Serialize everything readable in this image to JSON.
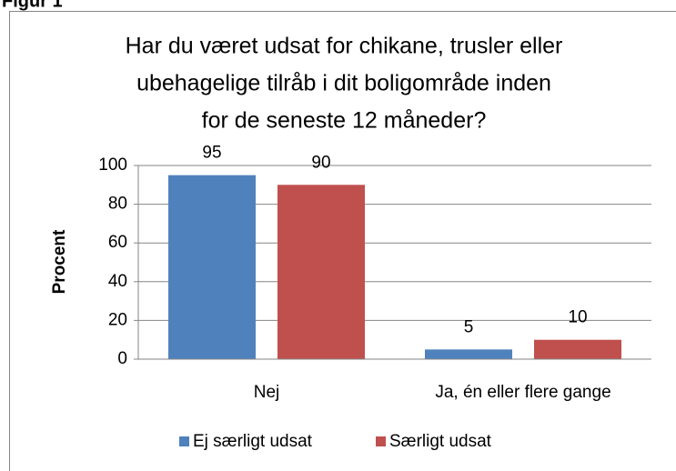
{
  "figure_label": "Figur 1",
  "chart_data": {
    "type": "bar",
    "title": [
      "Har du været udsat for chikane, trusler eller",
      "ubehagelige tilråb i dit boligområde inden",
      "for de seneste 12 måneder?"
    ],
    "y_label": "Procent",
    "categories": [
      "Nej",
      "Ja, én eller flere gange"
    ],
    "series": [
      {
        "name": "Ej særligt udsat",
        "color": "#4f81bd",
        "values": [
          95,
          5
        ]
      },
      {
        "name": "Særligt udsat",
        "color": "#c0504d",
        "values": [
          90,
          10
        ]
      }
    ],
    "ylim": [
      0,
      100
    ],
    "yticks": [
      0,
      20,
      40,
      60,
      80,
      100
    ],
    "grid": true,
    "legend": "bottom"
  }
}
